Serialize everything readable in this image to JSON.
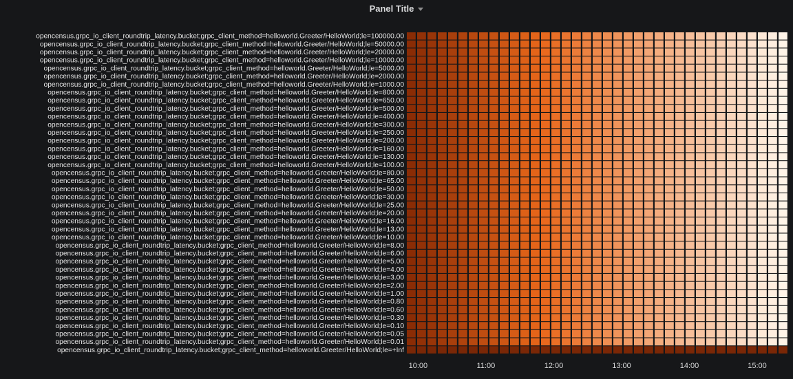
{
  "panel": {
    "title": "Panel Title",
    "menu_icon": "caret-down-icon"
  },
  "chart_data": {
    "type": "heatmap",
    "title": "Panel Title",
    "series_prefix": "opencensus.grpc_io_client_roundtrip_latency.bucket;grpc_client_method=helloworld.Greeter/HelloWorld;le=",
    "y_buckets": [
      "100000.00",
      "50000.00",
      "20000.00",
      "10000.00",
      "5000.00",
      "2000.00",
      "1000.00",
      "800.00",
      "650.00",
      "500.00",
      "400.00",
      "300.00",
      "250.00",
      "200.00",
      "160.00",
      "130.00",
      "100.00",
      "80.00",
      "65.00",
      "50.00",
      "30.00",
      "25.00",
      "20.00",
      "16.00",
      "13.00",
      "10.00",
      "8.00",
      "6.00",
      "5.00",
      "4.00",
      "3.00",
      "2.00",
      "1.00",
      "0.80",
      "0.60",
      "0.30",
      "0.10",
      "0.05",
      "0.01",
      "+Inf"
    ],
    "x_ticks": [
      "10:00",
      "11:00",
      "12:00",
      "13:00",
      "14:00",
      "15:00"
    ],
    "x_range": [
      "09:50",
      "15:28"
    ],
    "columns": 37,
    "colors": {
      "dark": "#8a2c05",
      "mid": "#e9671a",
      "light": "#fff4e8",
      "inf_row": "#7a2706"
    },
    "gradient": "dark-orange at left fading to near-white at right; +Inf row uniformly dark",
    "legend": "none",
    "grid": false
  }
}
